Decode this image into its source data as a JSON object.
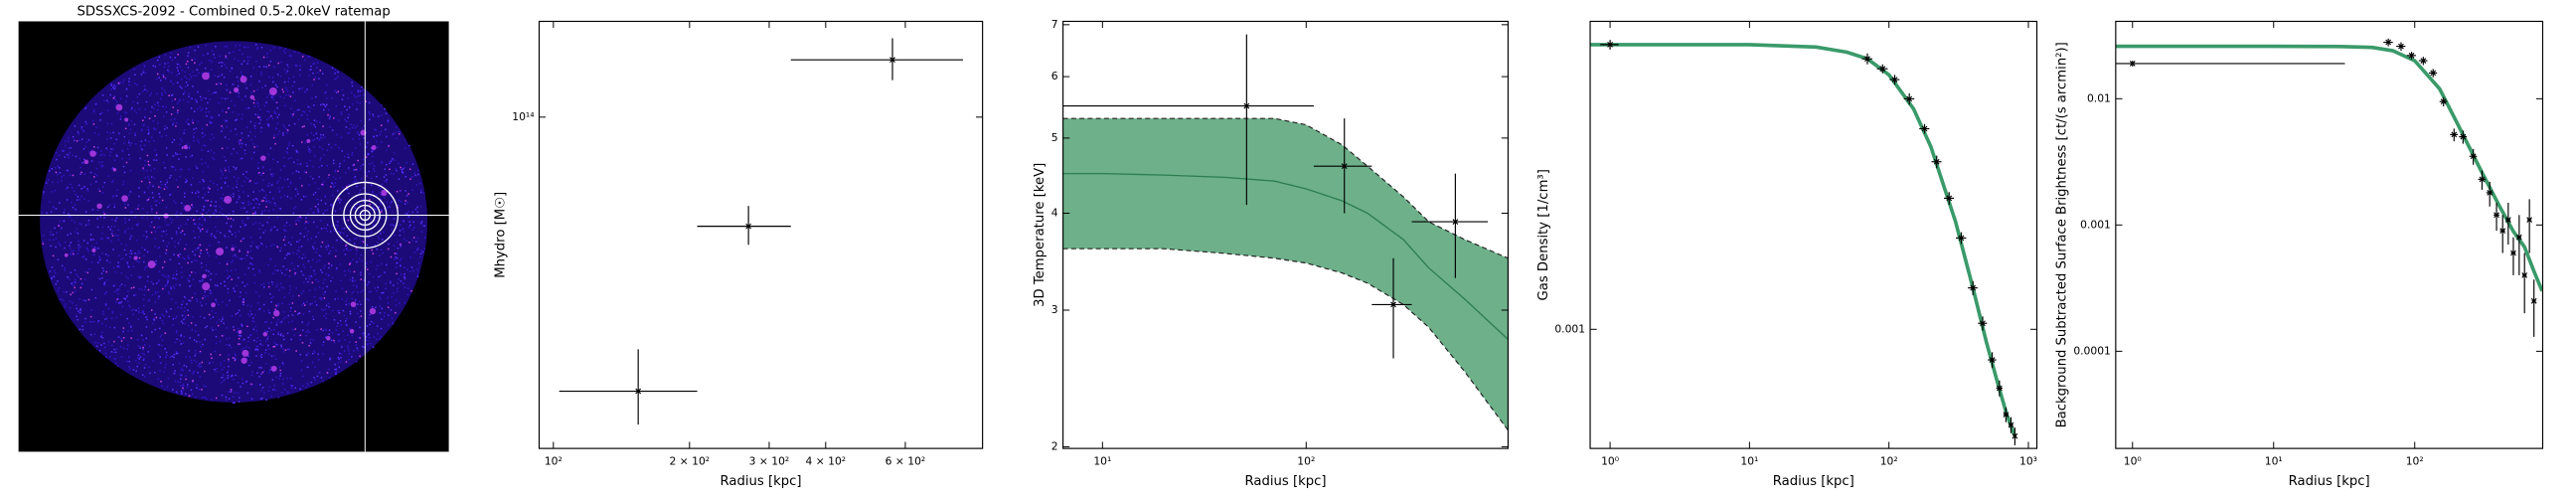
{
  "chart_data": [
    {
      "type": "image",
      "title": "SDSSXCS-2092 - Combined 0.5-2.0keV ratemap"
    },
    {
      "type": "errorbar",
      "xlabel": "Radius [kpc]",
      "ylabel": "Mhydro [M☉]",
      "xlog": true,
      "ylog": true,
      "xlim": [
        93,
        889
      ],
      "ylim": [
        21000000000000,
        157000000000000
      ],
      "xticks": [
        {
          "value": 100,
          "label": "10²"
        },
        {
          "value": 200,
          "label": "2 × 10²"
        },
        {
          "value": 300,
          "label": "3 × 10²"
        },
        {
          "value": 400,
          "label": "4 × 10²"
        },
        {
          "value": 600,
          "label": "6 × 10²"
        }
      ],
      "yticks": [
        {
          "value": 100000000000000,
          "label": "10¹⁴"
        }
      ],
      "points": {
        "x": [
          154,
          270,
          562
        ],
        "xerr_low": [
          51,
          62,
          227
        ],
        "xerr_high": [
          54,
          65,
          243
        ],
        "y": [
          27500000000000,
          59800000000000,
          131000000000000
        ],
        "yerr_low": [
          4000000000000,
          5000000000000,
          12000000000000
        ],
        "yerr_high": [
          6000000000000,
          6000000000000,
          14000000000000
        ]
      }
    },
    {
      "type": "errorbar",
      "xlabel": "Radius [kpc]",
      "ylabel": "3D Temperature [keV]",
      "xlog": true,
      "ylog": true,
      "xlim": [
        6.4,
        980
      ],
      "ylim": [
        1.99,
        7.07
      ],
      "xticks": [
        {
          "value": 10,
          "label": "10¹"
        },
        {
          "value": 100,
          "label": "10²"
        }
      ],
      "yticks": [
        2,
        3,
        4,
        5,
        6,
        7
      ],
      "band": {
        "color": "#6db08a",
        "line_color": "#2e7d4f",
        "x": [
          6.4,
          10,
          20,
          40,
          70,
          100,
          150,
          200,
          300,
          400,
          600,
          980
        ],
        "median": [
          4.5,
          4.5,
          4.48,
          4.45,
          4.4,
          4.3,
          4.15,
          4.0,
          3.7,
          3.4,
          3.1,
          2.75
        ],
        "upper": [
          5.3,
          5.3,
          5.3,
          5.3,
          5.3,
          5.2,
          4.9,
          4.6,
          4.2,
          3.9,
          3.7,
          3.5
        ],
        "lower": [
          3.6,
          3.6,
          3.6,
          3.55,
          3.5,
          3.45,
          3.35,
          3.25,
          3.05,
          2.85,
          2.5,
          2.1
        ]
      },
      "points": {
        "x": [
          51,
          154,
          268,
          540
        ],
        "xerr_low": [
          44.6,
          45,
          58,
          210
        ],
        "xerr_high": [
          58,
          56,
          62,
          240
        ],
        "y": [
          5.5,
          4.6,
          3.05,
          3.9
        ],
        "yerr_low": [
          1.4,
          0.6,
          0.45,
          0.6
        ],
        "yerr_high": [
          1.3,
          0.7,
          0.45,
          0.6
        ]
      }
    },
    {
      "type": "errorbar",
      "xlabel": "Radius [kpc]",
      "ylabel": "Gas Density [1/cm³]",
      "xlog": true,
      "ylog": true,
      "xlim": [
        0.72,
        1150
      ],
      "ylim": [
        0.00038,
        0.0122
      ],
      "xticks": [
        {
          "value": 1,
          "label": "10⁰"
        },
        {
          "value": 10,
          "label": "10¹"
        },
        {
          "value": 100,
          "label": "10²"
        },
        {
          "value": 1000,
          "label": "10³"
        }
      ],
      "yticks": [
        0.001
      ],
      "model": {
        "color": "#3a9a6a",
        "x": [
          0.72,
          1,
          10,
          30,
          50,
          70,
          100,
          150,
          200,
          300,
          400,
          500,
          600,
          700,
          800
        ],
        "y": [
          0.0101,
          0.0101,
          0.0101,
          0.0099,
          0.0095,
          0.009,
          0.0079,
          0.006,
          0.0044,
          0.0024,
          0.0014,
          0.0009,
          0.00065,
          0.0005,
          0.00042
        ]
      },
      "points": {
        "x": [
          1,
          70,
          90,
          110,
          140,
          180,
          220,
          270,
          330,
          400,
          470,
          550,
          620,
          690,
          750,
          800
        ],
        "xerr_low": [
          0.15,
          6,
          8,
          9,
          12,
          15,
          18,
          22,
          28,
          32,
          35,
          38,
          32,
          30,
          28,
          22
        ],
        "xerr_high": [
          0.15,
          6,
          8,
          9,
          12,
          15,
          18,
          22,
          28,
          32,
          35,
          38,
          32,
          30,
          28,
          22
        ],
        "y": [
          0.0101,
          0.009,
          0.0083,
          0.0076,
          0.0065,
          0.0051,
          0.0039,
          0.0029,
          0.0021,
          0.0014,
          0.00105,
          0.00078,
          0.00062,
          0.0005,
          0.00046,
          0.00042
        ],
        "yerr_low": [
          0.0004,
          0.0004,
          0.0003,
          0.0003,
          0.0003,
          0.0002,
          0.0002,
          0.00015,
          0.0001,
          8e-05,
          6e-05,
          5e-05,
          4e-05,
          3e-05,
          3e-05,
          3e-05
        ],
        "yerr_high": [
          0.0004,
          0.0004,
          0.0003,
          0.0003,
          0.0003,
          0.0002,
          0.0002,
          0.00015,
          0.0001,
          8e-05,
          6e-05,
          5e-05,
          4e-05,
          3e-05,
          3e-05,
          3e-05
        ]
      }
    },
    {
      "type": "errorbar",
      "xlabel": "Radius [kpc]",
      "ylabel": "Background Subtracted Surface Brightness [ct/(s arcmin²)]",
      "xlog": true,
      "ylog": true,
      "xlim": [
        0.76,
        807
      ],
      "ylim": [
        1.7e-05,
        0.041
      ],
      "xticks": [
        {
          "value": 1,
          "label": "10⁰"
        },
        {
          "value": 10,
          "label": "10¹"
        },
        {
          "value": 100,
          "label": "10²"
        }
      ],
      "yticks": [
        0.0001,
        0.001,
        0.01
      ],
      "model": {
        "color": "#3a9a6a",
        "x": [
          0.76,
          1,
          10,
          30,
          50,
          70,
          100,
          150,
          200,
          300,
          400,
          500,
          600,
          700,
          800
        ],
        "y": [
          0.026,
          0.026,
          0.026,
          0.0259,
          0.0255,
          0.024,
          0.02,
          0.012,
          0.0064,
          0.0026,
          0.0014,
          0.00089,
          0.00067,
          0.00043,
          0.0003
        ]
      },
      "points": {
        "x": [
          1,
          65,
          80,
          95,
          115,
          135,
          160,
          190,
          220,
          260,
          300,
          340,
          380,
          420,
          460,
          500,
          550,
          600,
          650,
          700
        ],
        "xerr_low": [
          0.24,
          5,
          6,
          7,
          8,
          9,
          10,
          12,
          14,
          16,
          18,
          18,
          18,
          18,
          18,
          20,
          20,
          22,
          22,
          24
        ],
        "xerr_high": [
          31,
          5,
          6,
          7,
          8,
          9,
          10,
          12,
          14,
          16,
          18,
          18,
          18,
          18,
          18,
          20,
          20,
          22,
          22,
          24
        ],
        "y": [
          0.019,
          0.028,
          0.026,
          0.022,
          0.02,
          0.016,
          0.0095,
          0.0052,
          0.005,
          0.0035,
          0.0023,
          0.0018,
          0.0012,
          0.0009,
          0.0011,
          0.0006,
          0.0008,
          0.0004,
          0.0011,
          0.00025
        ],
        "yerr_low": [
          0.001,
          0.002,
          0.002,
          0.0015,
          0.0015,
          0.0012,
          0.0008,
          0.0006,
          0.0006,
          0.0005,
          0.0004,
          0.0004,
          0.0003,
          0.0003,
          0.0004,
          0.0002,
          0.0004,
          0.0002,
          0.0005,
          0.00012
        ],
        "yerr_high": [
          0.001,
          0.002,
          0.002,
          0.0015,
          0.0015,
          0.0012,
          0.0008,
          0.0006,
          0.0006,
          0.0005,
          0.0004,
          0.0004,
          0.0003,
          0.0003,
          0.0004,
          0.0002,
          0.0004,
          0.0002,
          0.0005,
          0.00012
        ]
      }
    }
  ]
}
